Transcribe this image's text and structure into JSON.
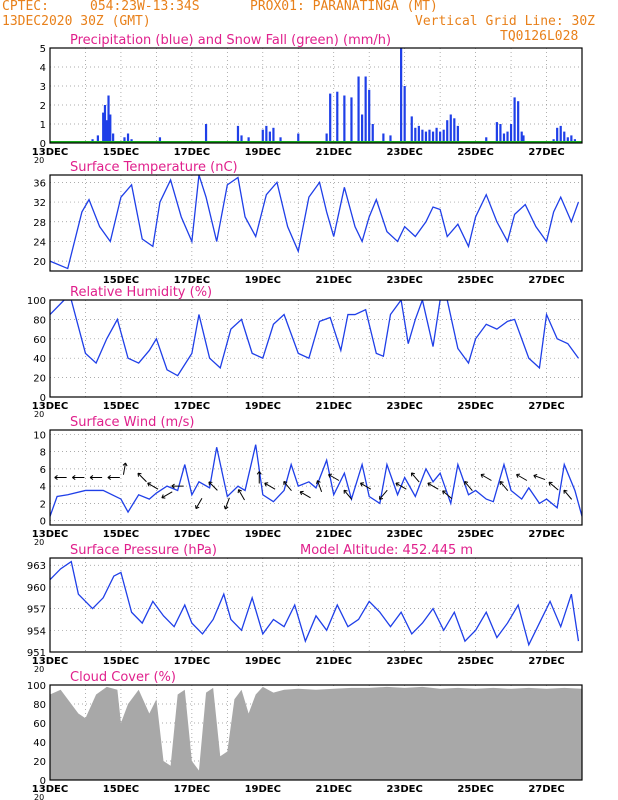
{
  "header": {
    "source": "CPTEC:",
    "location": "054:23W-13:34S",
    "point": "PROX01: PARANATINGA (MT)",
    "date": "13DEC2020 30Z (GMT)",
    "grid_line": "Vertical Grid Line: 30Z",
    "code": "TQ0126L028"
  },
  "colors": {
    "header_text": "#e8801a",
    "panel_title": "#e0208c",
    "precip": "#1f3fe8",
    "snow": "#16a81a",
    "line": "#1f3fe8",
    "cloud": "#a8a8a8",
    "grid": "#909090"
  },
  "chart_data": [
    {
      "type": "bar",
      "title": "Precipitation (blue) and Snow Fall (green) (mm/h)",
      "ylim": [
        0,
        5
      ],
      "yticks": [
        "0",
        "1",
        "2",
        "3",
        "4",
        "5"
      ],
      "xlabels": [
        "13DEC",
        "15DEC",
        "17DEC",
        "19DEC",
        "21DEC",
        "23DEC",
        "25DEC",
        "27DEC"
      ],
      "x_note": "20",
      "grid": true,
      "series": [
        {
          "name": "Precipitation",
          "points": [
            [
              1.2,
              0.2
            ],
            [
              1.35,
              0.4
            ],
            [
              1.5,
              1.6
            ],
            [
              1.55,
              2.0
            ],
            [
              1.6,
              1.2
            ],
            [
              1.65,
              2.5
            ],
            [
              1.7,
              1.5
            ],
            [
              1.78,
              0.5
            ],
            [
              2.1,
              0.3
            ],
            [
              2.2,
              0.5
            ],
            [
              2.3,
              0.2
            ],
            [
              3.1,
              0.3
            ],
            [
              4.4,
              1.0
            ],
            [
              5.3,
              0.9
            ],
            [
              5.4,
              0.4
            ],
            [
              5.6,
              0.3
            ],
            [
              6.0,
              0.7
            ],
            [
              6.1,
              0.9
            ],
            [
              6.2,
              0.6
            ],
            [
              6.3,
              0.8
            ],
            [
              6.5,
              0.3
            ],
            [
              7.0,
              0.5
            ],
            [
              7.8,
              0.5
            ],
            [
              7.9,
              2.6
            ],
            [
              8.1,
              2.7
            ],
            [
              8.3,
              2.5
            ],
            [
              8.5,
              2.4
            ],
            [
              8.7,
              3.5
            ],
            [
              8.8,
              1.5
            ],
            [
              8.9,
              3.5
            ],
            [
              9.0,
              2.8
            ],
            [
              9.1,
              1.0
            ],
            [
              9.4,
              0.5
            ],
            [
              9.6,
              0.4
            ],
            [
              9.9,
              5.0
            ],
            [
              10.0,
              3.0
            ],
            [
              10.2,
              1.4
            ],
            [
              10.3,
              0.8
            ],
            [
              10.4,
              0.9
            ],
            [
              10.5,
              0.7
            ],
            [
              10.6,
              0.6
            ],
            [
              10.7,
              0.7
            ],
            [
              10.8,
              0.6
            ],
            [
              10.9,
              0.8
            ],
            [
              11.0,
              0.6
            ],
            [
              11.1,
              0.7
            ],
            [
              11.2,
              1.2
            ],
            [
              11.3,
              1.5
            ],
            [
              11.4,
              1.3
            ],
            [
              11.5,
              0.9
            ],
            [
              12.3,
              0.3
            ],
            [
              12.6,
              1.1
            ],
            [
              12.7,
              1.0
            ],
            [
              12.8,
              0.5
            ],
            [
              12.9,
              0.6
            ],
            [
              13.0,
              1.0
            ],
            [
              13.1,
              2.4
            ],
            [
              13.2,
              2.2
            ],
            [
              13.3,
              0.6
            ],
            [
              13.35,
              0.4
            ],
            [
              14.2,
              0.2
            ],
            [
              14.3,
              0.8
            ],
            [
              14.4,
              0.9
            ],
            [
              14.5,
              0.6
            ],
            [
              14.6,
              0.3
            ],
            [
              14.7,
              0.4
            ],
            [
              14.8,
              0.2
            ]
          ]
        },
        {
          "name": "Snow Fall",
          "points": []
        }
      ]
    },
    {
      "type": "line",
      "title": "Surface Temperature (nC)",
      "ylim": [
        18,
        37.5
      ],
      "yticks": [
        "20",
        "24",
        "28",
        "32",
        "36"
      ],
      "xlabels": [
        "15DEC",
        "17DEC",
        "19DEC",
        "21DEC",
        "23DEC",
        "25DEC",
        "27DEC"
      ],
      "x": [
        0.0,
        0.5,
        0.9,
        1.1,
        1.4,
        1.7,
        2.0,
        2.3,
        2.6,
        2.9,
        3.1,
        3.4,
        3.7,
        4.0,
        4.2,
        4.4,
        4.7,
        5.0,
        5.3,
        5.5,
        5.8,
        6.1,
        6.4,
        6.7,
        7.0,
        7.3,
        7.6,
        7.8,
        8.0,
        8.3,
        8.6,
        8.8,
        9.0,
        9.2,
        9.5,
        9.8,
        10.0,
        10.3,
        10.6,
        10.8,
        11.0,
        11.2,
        11.5,
        11.8,
        12.0,
        12.3,
        12.6,
        12.9,
        13.1,
        13.4,
        13.7,
        14.0,
        14.2,
        14.4,
        14.7,
        14.9
      ],
      "y": [
        20.0,
        18.5,
        30.0,
        32.5,
        27.0,
        24.0,
        33.0,
        35.5,
        24.5,
        23.0,
        32.0,
        36.5,
        29.0,
        24.0,
        37.5,
        33.0,
        24.0,
        35.5,
        37.0,
        29.0,
        25.0,
        33.5,
        36.0,
        27.0,
        22.0,
        33.0,
        36.0,
        30.0,
        25.0,
        35.0,
        27.0,
        24.0,
        29.0,
        32.5,
        26.0,
        24.0,
        27.0,
        25.0,
        28.0,
        31.0,
        30.5,
        25.0,
        27.5,
        23.0,
        29.0,
        33.5,
        28.0,
        24.0,
        29.5,
        31.5,
        27.0,
        24.0,
        30.0,
        33.0,
        28.0,
        32.0
      ]
    },
    {
      "type": "line",
      "title": "Relative Humidity (%)",
      "ylim": [
        0,
        100
      ],
      "yticks": [
        "0",
        "20",
        "40",
        "60",
        "80",
        "100"
      ],
      "xlabels": [
        "13DEC",
        "15DEC",
        "17DEC",
        "19DEC",
        "21DEC",
        "23DEC",
        "25DEC",
        "27DEC"
      ],
      "x_note": "20",
      "x": [
        0.0,
        0.4,
        0.6,
        1.0,
        1.3,
        1.6,
        1.9,
        2.2,
        2.5,
        2.8,
        3.0,
        3.3,
        3.6,
        4.0,
        4.2,
        4.5,
        4.8,
        5.1,
        5.4,
        5.7,
        6.0,
        6.3,
        6.6,
        7.0,
        7.3,
        7.6,
        7.9,
        8.2,
        8.4,
        8.6,
        8.9,
        9.2,
        9.4,
        9.6,
        9.9,
        10.1,
        10.3,
        10.5,
        10.8,
        11.0,
        11.2,
        11.5,
        11.8,
        12.0,
        12.3,
        12.6,
        12.9,
        13.1,
        13.5,
        13.8,
        14.0,
        14.3,
        14.6,
        14.9
      ],
      "y": [
        85.0,
        100.0,
        100.0,
        45.0,
        35.0,
        60.0,
        80.0,
        40.0,
        35.0,
        48.0,
        60.0,
        28.0,
        22.0,
        45.0,
        85.0,
        40.0,
        30.0,
        70.0,
        80.0,
        45.0,
        40.0,
        75.0,
        85.0,
        45.0,
        40.0,
        78.0,
        82.0,
        48.0,
        85.0,
        85.0,
        90.0,
        45.0,
        42.0,
        85.0,
        100.0,
        55.0,
        80.0,
        100.0,
        52.0,
        100.0,
        100.0,
        50.0,
        35.0,
        60.0,
        75.0,
        70.0,
        78.0,
        80.0,
        40.0,
        30.0,
        85.0,
        60.0,
        55.0,
        40.0
      ]
    },
    {
      "type": "line",
      "title": "Surface Wind (m/s)",
      "ylim": [
        -0.5,
        10.5
      ],
      "yticks": [
        "0",
        "2",
        "4",
        "6",
        "8",
        "10"
      ],
      "xlabels": [
        "13DEC",
        "15DEC",
        "17DEC",
        "19DEC",
        "21DEC",
        "23DEC",
        "25DEC",
        "27DEC"
      ],
      "x_note": "20",
      "x": [
        0.0,
        0.2,
        0.5,
        1.0,
        1.5,
        2.0,
        2.2,
        2.5,
        2.8,
        3.0,
        3.3,
        3.6,
        3.8,
        4.0,
        4.2,
        4.5,
        4.7,
        5.0,
        5.3,
        5.5,
        5.8,
        6.0,
        6.3,
        6.6,
        6.8,
        7.0,
        7.3,
        7.5,
        7.8,
        8.0,
        8.3,
        8.5,
        8.8,
        9.0,
        9.3,
        9.5,
        9.8,
        10.0,
        10.3,
        10.6,
        10.8,
        11.0,
        11.3,
        11.5,
        11.8,
        12.0,
        12.3,
        12.5,
        12.8,
        13.0,
        13.3,
        13.5,
        13.8,
        14.0,
        14.3,
        14.5,
        14.8,
        15.0
      ],
      "y": [
        0.5,
        2.8,
        3.0,
        3.5,
        3.5,
        2.5,
        1.0,
        3.0,
        2.5,
        3.2,
        4.0,
        3.5,
        6.5,
        3.0,
        4.5,
        3.8,
        8.5,
        2.8,
        4.0,
        3.5,
        8.8,
        3.0,
        2.2,
        3.5,
        6.5,
        4.0,
        4.5,
        3.8,
        7.0,
        3.0,
        5.5,
        2.5,
        6.5,
        2.8,
        2.0,
        6.5,
        3.0,
        5.0,
        2.8,
        6.0,
        4.5,
        5.5,
        2.0,
        6.5,
        3.0,
        3.5,
        2.5,
        2.2,
        6.5,
        3.5,
        2.5,
        3.8,
        2.0,
        2.5,
        1.5,
        6.5,
        3.5,
        0.5
      ],
      "arrows": [
        {
          "x": 0.3,
          "y": 5,
          "dir": 270
        },
        {
          "x": 0.8,
          "y": 5,
          "dir": 270
        },
        {
          "x": 1.3,
          "y": 5,
          "dir": 270
        },
        {
          "x": 1.8,
          "y": 5,
          "dir": 270
        },
        {
          "x": 2.1,
          "y": 6,
          "dir": 10
        },
        {
          "x": 2.6,
          "y": 5,
          "dir": 315
        },
        {
          "x": 2.9,
          "y": 4,
          "dir": 300
        },
        {
          "x": 3.3,
          "y": 3,
          "dir": 240
        },
        {
          "x": 3.6,
          "y": 4,
          "dir": 270
        },
        {
          "x": 4.2,
          "y": 2,
          "dir": 210
        },
        {
          "x": 4.6,
          "y": 4,
          "dir": 315
        },
        {
          "x": 5.0,
          "y": 2,
          "dir": 200
        },
        {
          "x": 5.4,
          "y": 3,
          "dir": 330
        },
        {
          "x": 5.9,
          "y": 5,
          "dir": 0
        },
        {
          "x": 6.2,
          "y": 4,
          "dir": 300
        },
        {
          "x": 6.7,
          "y": 4,
          "dir": 320
        },
        {
          "x": 7.2,
          "y": 3,
          "dir": 300
        },
        {
          "x": 7.6,
          "y": 4,
          "dir": 340
        },
        {
          "x": 8.0,
          "y": 5,
          "dir": 300
        },
        {
          "x": 8.4,
          "y": 3,
          "dir": 320
        },
        {
          "x": 8.9,
          "y": 4,
          "dir": 300
        },
        {
          "x": 9.4,
          "y": 3,
          "dir": 220
        },
        {
          "x": 9.9,
          "y": 4,
          "dir": 300
        },
        {
          "x": 10.3,
          "y": 5,
          "dir": 320
        },
        {
          "x": 10.8,
          "y": 4,
          "dir": 300
        },
        {
          "x": 11.2,
          "y": 3,
          "dir": 310
        },
        {
          "x": 11.8,
          "y": 4,
          "dir": 320
        },
        {
          "x": 12.3,
          "y": 5,
          "dir": 300
        },
        {
          "x": 12.8,
          "y": 4,
          "dir": 320
        },
        {
          "x": 13.3,
          "y": 5,
          "dir": 300
        },
        {
          "x": 13.8,
          "y": 5,
          "dir": 290
        },
        {
          "x": 14.2,
          "y": 4,
          "dir": 310
        },
        {
          "x": 14.6,
          "y": 3,
          "dir": 320
        }
      ]
    },
    {
      "type": "line",
      "title": "Surface Pressure (hPa)",
      "annotation": "Model Altitude: 452.445 m",
      "ylim": [
        951,
        964
      ],
      "yticks": [
        "951",
        "954",
        "957",
        "960",
        "963"
      ],
      "xlabels": [
        "13DEC",
        "15DEC",
        "17DEC",
        "19DEC",
        "21DEC",
        "23DEC",
        "25DEC",
        "27DEC"
      ],
      "x_note": "20",
      "x": [
        0.0,
        0.3,
        0.6,
        0.8,
        1.2,
        1.5,
        1.8,
        2.0,
        2.3,
        2.6,
        2.9,
        3.2,
        3.5,
        3.8,
        4.0,
        4.3,
        4.6,
        4.9,
        5.1,
        5.4,
        5.7,
        6.0,
        6.3,
        6.6,
        6.9,
        7.2,
        7.5,
        7.8,
        8.1,
        8.4,
        8.7,
        9.0,
        9.3,
        9.6,
        9.9,
        10.2,
        10.5,
        10.8,
        11.1,
        11.4,
        11.7,
        12.0,
        12.3,
        12.6,
        12.9,
        13.2,
        13.5,
        13.8,
        14.1,
        14.4,
        14.7,
        14.9
      ],
      "y": [
        961.0,
        962.5,
        963.5,
        959.0,
        957.0,
        958.5,
        961.5,
        962.0,
        956.5,
        955.0,
        958.0,
        956.0,
        954.5,
        957.5,
        955.0,
        953.5,
        955.5,
        959.0,
        955.5,
        954.0,
        958.5,
        953.5,
        955.5,
        954.5,
        957.5,
        952.5,
        956.0,
        954.0,
        957.5,
        954.5,
        955.5,
        958.0,
        956.5,
        954.5,
        956.5,
        953.5,
        955.0,
        957.0,
        954.0,
        956.5,
        952.5,
        954.0,
        956.5,
        953.0,
        955.0,
        957.5,
        952.0,
        955.0,
        958.0,
        954.5,
        959.0,
        952.5
      ]
    },
    {
      "type": "area",
      "title": "Cloud Cover (%)",
      "ylim": [
        0,
        100
      ],
      "yticks": [
        "0",
        "20",
        "40",
        "60",
        "80",
        "100"
      ],
      "xlabels": [
        "13DEC",
        "15DEC",
        "17DEC",
        "19DEC",
        "21DEC",
        "23DEC",
        "25DEC",
        "27DEC"
      ],
      "x_note": "20",
      "x": [
        0.0,
        0.3,
        0.5,
        0.8,
        1.0,
        1.3,
        1.6,
        1.9,
        2.0,
        2.2,
        2.5,
        2.8,
        3.0,
        3.2,
        3.4,
        3.6,
        3.8,
        4.0,
        4.2,
        4.4,
        4.6,
        4.8,
        5.0,
        5.2,
        5.4,
        5.6,
        5.8,
        6.0,
        6.3,
        6.6,
        7.0,
        7.5,
        8.0,
        8.5,
        9.0,
        9.5,
        10.0,
        10.5,
        11.0,
        11.5,
        12.0,
        12.5,
        13.0,
        13.5,
        14.0,
        14.5,
        15.0
      ],
      "y": [
        90,
        95,
        85,
        70,
        65,
        90,
        98,
        95,
        60,
        80,
        95,
        70,
        85,
        20,
        15,
        90,
        95,
        20,
        10,
        92,
        97,
        25,
        30,
        85,
        95,
        70,
        90,
        98,
        92,
        95,
        96,
        95,
        96,
        97,
        97,
        98,
        97,
        98,
        96,
        97,
        96,
        97,
        96,
        97,
        96,
        97,
        96
      ]
    }
  ]
}
